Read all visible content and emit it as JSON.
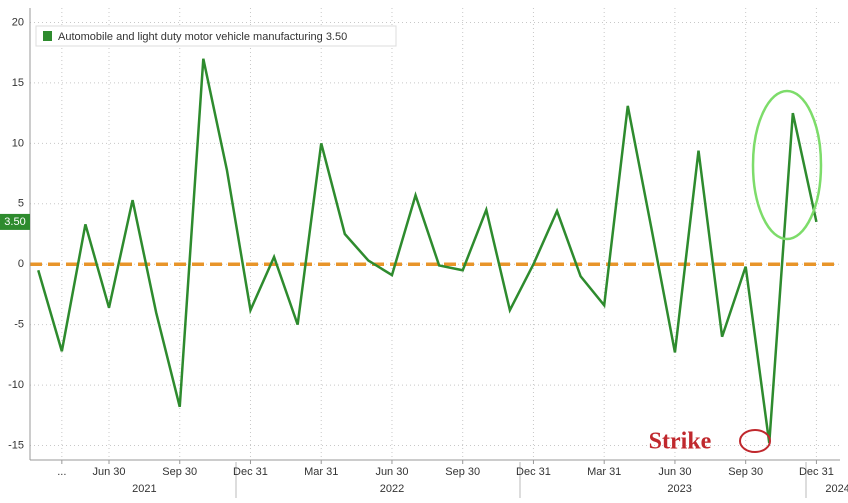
{
  "chart_data": {
    "type": "line",
    "series": [
      {
        "name": "Automobile and light duty motor vehicle manufacturing 3.50",
        "color": "#2e8b2e",
        "values": [
          -0.5,
          -7.2,
          3.3,
          -3.6,
          5.3,
          -4,
          -11.8,
          17,
          7.8,
          -3.8,
          0.6,
          -5,
          10,
          2.5,
          0.3,
          -0.9,
          5.7,
          -0.1,
          -0.5,
          4.5,
          -3.8,
          0,
          4.4,
          -1,
          -3.4,
          13.1,
          3,
          -7.3,
          9.4,
          -6,
          -0.2,
          -14.8,
          12.5,
          3.5
        ]
      }
    ],
    "last_value_label": "3.50",
    "last_value_color": "#2e8b2e",
    "xlim": [
      -0.35,
      34
    ],
    "xticks": [
      {
        "value": 1,
        "label": "..."
      },
      {
        "value": 3,
        "label": "Jun 30"
      },
      {
        "value": 6,
        "label": "Sep 30"
      },
      {
        "value": 9,
        "label": "Dec 31"
      },
      {
        "value": 12,
        "label": "Mar 31"
      },
      {
        "value": 15,
        "label": "Jun 30"
      },
      {
        "value": 18,
        "label": "Sep 30"
      },
      {
        "value": 21,
        "label": "Dec 31"
      },
      {
        "value": 24,
        "label": "Mar 31"
      },
      {
        "value": 27,
        "label": "Jun 30"
      },
      {
        "value": 30,
        "label": "Sep 30"
      },
      {
        "value": 33,
        "label": "Dec 31"
      }
    ],
    "year_labels": [
      {
        "value": 4.5,
        "label": "2021"
      },
      {
        "value": 15,
        "label": "2022"
      },
      {
        "value": 27.2,
        "label": "2023"
      },
      {
        "value": 33.9,
        "label": "2024"
      }
    ],
    "ylim": [
      -16.2,
      21.2
    ],
    "yticks": [
      -15,
      -10,
      -5,
      0,
      5,
      10,
      15,
      20
    ],
    "grid": true,
    "reference_line": {
      "value": 0,
      "color": "#e8952a"
    },
    "annotation": {
      "text": "Strike",
      "color": "#c0282d"
    },
    "legend": "top-left"
  }
}
